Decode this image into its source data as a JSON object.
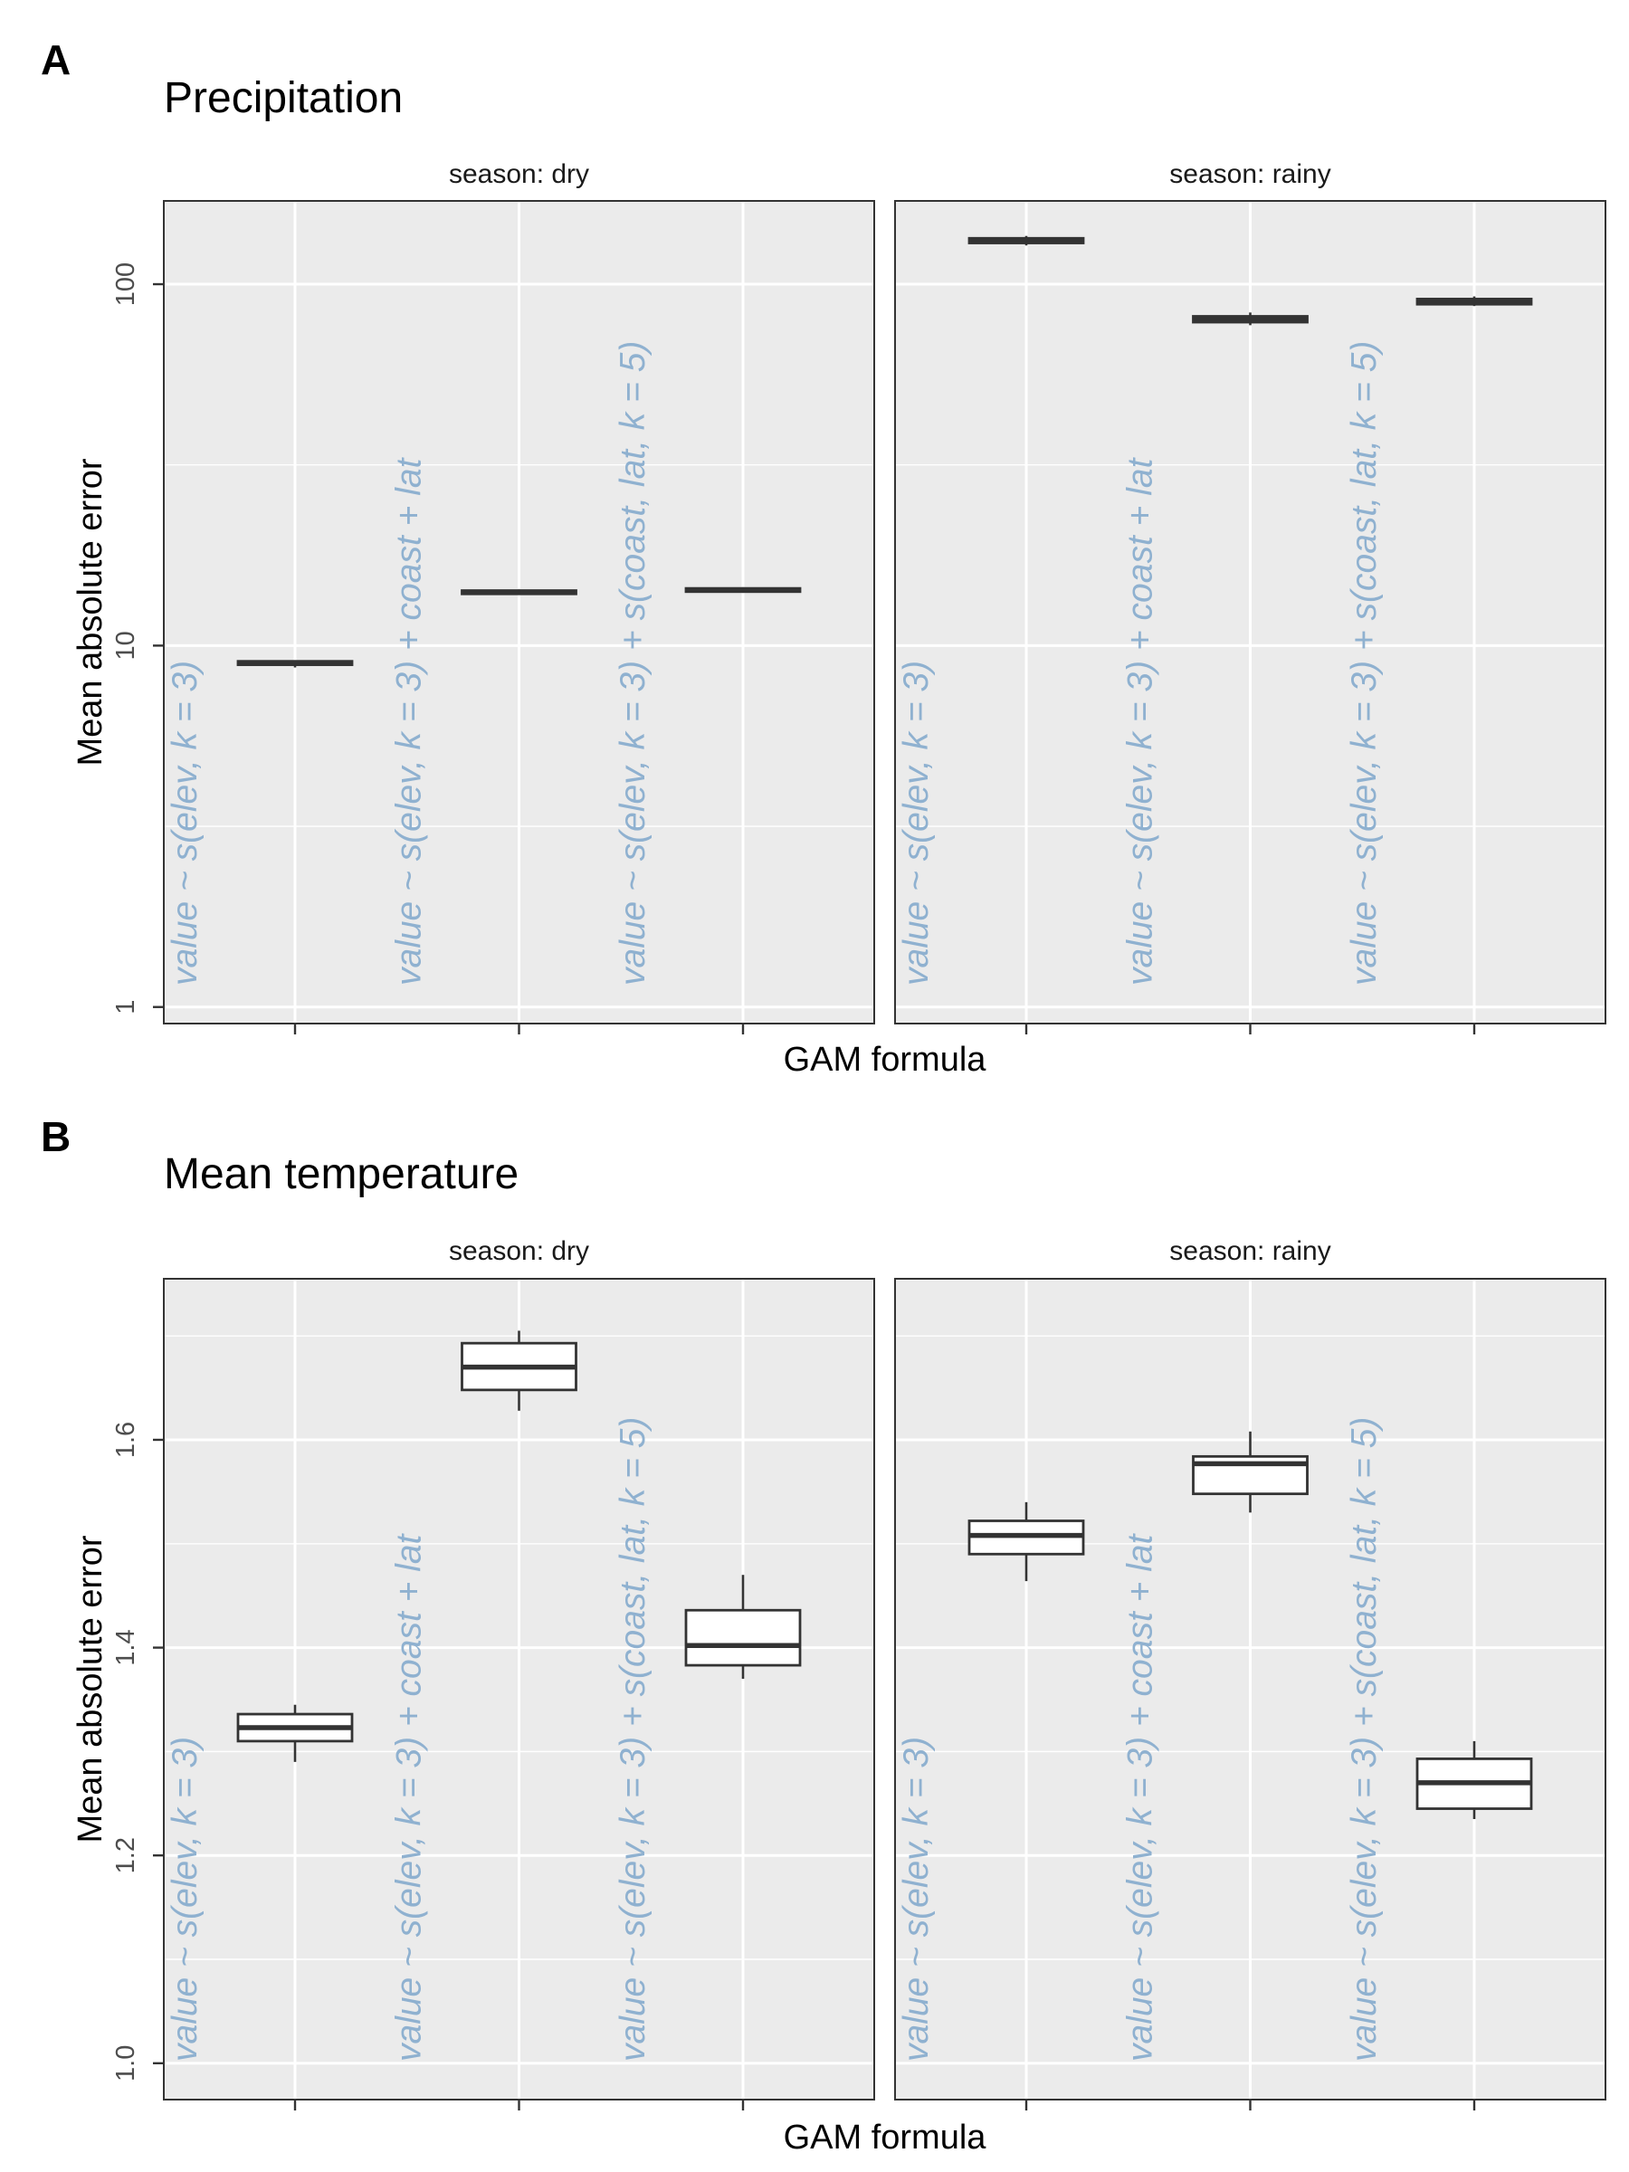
{
  "label_color": "#8fb1d0",
  "chart_data": [
    {
      "panel_letter": "A",
      "title": "Precipitation",
      "type": "boxplot",
      "xlabel": "GAM formula",
      "ylabel": "Mean absolute error",
      "y_scale": "log10",
      "ylim": [
        0.9,
        170
      ],
      "y_ticks": [
        1,
        10,
        100
      ],
      "y_tick_labels": [
        "1",
        "10",
        "100"
      ],
      "categories": [
        "value ~ s(elev, k = 3)",
        "value ~ s(elev, k = 3) + coast + lat",
        "value ~ s(elev, k = 3) + s(coast, lat, k = 5)"
      ],
      "facets": [
        {
          "label": "season: dry",
          "boxes": [
            {
              "q1": 8.85,
              "median": 8.95,
              "q3": 9.05,
              "whisker_low": 8.7,
              "whisker_high": 9.1
            },
            {
              "q1": 13.9,
              "median": 14.05,
              "q3": 14.2,
              "whisker_low": 13.8,
              "whisker_high": 14.3
            },
            {
              "q1": 14.1,
              "median": 14.25,
              "q3": 14.4,
              "whisker_low": 14.0,
              "whisker_high": 14.5
            }
          ]
        },
        {
          "label": "season: rainy",
          "boxes": [
            {
              "q1": 130,
              "median": 132,
              "q3": 134,
              "whisker_low": 128,
              "whisker_high": 136
            },
            {
              "q1": 78.5,
              "median": 80,
              "q3": 81.5,
              "whisker_low": 77,
              "whisker_high": 83.5
            },
            {
              "q1": 88,
              "median": 89.5,
              "q3": 91,
              "whisker_low": 87,
              "whisker_high": 92.5
            }
          ]
        }
      ]
    },
    {
      "panel_letter": "B",
      "title": "Mean temperature",
      "type": "boxplot",
      "xlabel": "GAM formula",
      "ylabel": "Mean absolute error",
      "y_scale": "linear",
      "ylim": [
        0.965,
        1.755
      ],
      "y_ticks": [
        1.0,
        1.2,
        1.4,
        1.6
      ],
      "y_tick_labels": [
        "1.0",
        "1.2",
        "1.4",
        "1.6"
      ],
      "categories": [
        "value ~ s(elev, k = 3)",
        "value ~ s(elev, k = 3) + coast + lat",
        "value ~ s(elev, k = 3) + s(coast, lat, k = 5)"
      ],
      "facets": [
        {
          "label": "season: dry",
          "boxes": [
            {
              "q1": 1.31,
              "median": 1.323,
              "q3": 1.336,
              "whisker_low": 1.29,
              "whisker_high": 1.345
            },
            {
              "q1": 1.648,
              "median": 1.67,
              "q3": 1.693,
              "whisker_low": 1.628,
              "whisker_high": 1.705
            },
            {
              "q1": 1.383,
              "median": 1.402,
              "q3": 1.436,
              "whisker_low": 1.37,
              "whisker_high": 1.47
            }
          ]
        },
        {
          "label": "season: rainy",
          "boxes": [
            {
              "q1": 1.49,
              "median": 1.508,
              "q3": 1.522,
              "whisker_low": 1.464,
              "whisker_high": 1.54
            },
            {
              "q1": 1.548,
              "median": 1.577,
              "q3": 1.584,
              "whisker_low": 1.53,
              "whisker_high": 1.608
            },
            {
              "q1": 1.245,
              "median": 1.27,
              "q3": 1.293,
              "whisker_low": 1.235,
              "whisker_high": 1.31
            }
          ]
        }
      ]
    }
  ]
}
